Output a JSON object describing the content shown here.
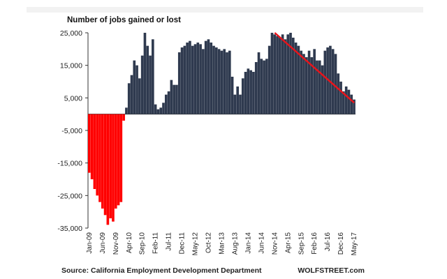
{
  "chart_data": {
    "type": "bar",
    "title": "Number of jobs gained or lost",
    "source": "Source: California Employment Development Department",
    "credit": "WOLFSTREET.com",
    "ylim": [
      -35000,
      25000
    ],
    "y_ticks": [
      25000,
      15000,
      5000,
      -5000,
      -15000,
      -25000,
      -35000
    ],
    "y_tick_labels": [
      "25,000",
      "15,000",
      "5,000",
      "-5,000",
      "-15,000",
      "-25,000",
      "-35,000"
    ],
    "x_tick_labels": [
      "Jan-09",
      "Jun-09",
      "Nov-09",
      "Apr-10",
      "Sep-10",
      "Feb-11",
      "Jul-11",
      "Dec-11",
      "May-12",
      "Oct-12",
      "Mar-13",
      "Aug-13",
      "Jan-14",
      "Jun-14",
      "Nov-14",
      "Apr-15",
      "Sep-15",
      "Feb-16",
      "Jul-16",
      "Dec-16",
      "May-17"
    ],
    "x_tick_index": [
      0,
      5,
      10,
      15,
      20,
      25,
      30,
      35,
      40,
      45,
      50,
      55,
      60,
      65,
      70,
      75,
      80,
      85,
      90,
      95,
      100
    ],
    "colors": {
      "positive": "#2f3a4f",
      "negative": "#ff0000",
      "trend": "#e8141b"
    },
    "trend_line": {
      "start_month": "Nov-14",
      "start_value": 25000,
      "end_month": "May-17",
      "end_value": 3500
    },
    "months_from": "Jan-09",
    "months_to": "May-17",
    "values": [
      -18000,
      -20000,
      -23000,
      -25000,
      -27000,
      -29000,
      -31000,
      -34000,
      -32000,
      -33000,
      -29000,
      -28000,
      -27000,
      -2000,
      2000,
      9500,
      12000,
      16500,
      15000,
      11000,
      18000,
      25000,
      21000,
      18000,
      23000,
      3000,
      1500,
      2000,
      3500,
      6000,
      7000,
      10500,
      9000,
      9000,
      19000,
      20500,
      21000,
      22000,
      22500,
      21000,
      21500,
      22000,
      21500,
      20000,
      22500,
      23000,
      22000,
      21000,
      20500,
      20000,
      19500,
      20000,
      19000,
      19500,
      11500,
      6000,
      8500,
      6000,
      11000,
      13000,
      14000,
      13500,
      13000,
      16000,
      19000,
      17000,
      16500,
      17000,
      21000,
      25000,
      24500,
      24000,
      23500,
      24500,
      23000,
      24500,
      25000,
      23500,
      22000,
      21000,
      19500,
      18500,
      17500,
      19500,
      17500,
      20000,
      16500,
      16500,
      15000,
      19500,
      20500,
      21000,
      20000,
      18500,
      12500,
      10000,
      7000,
      8500,
      7500,
      6000,
      4500
    ]
  }
}
